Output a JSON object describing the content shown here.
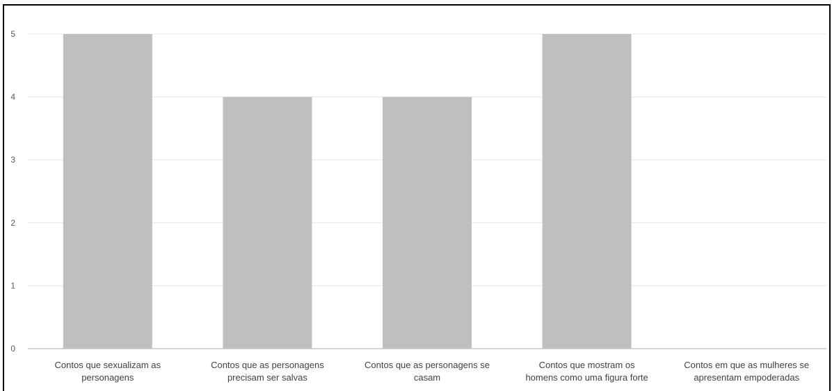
{
  "chart_data": {
    "type": "bar",
    "categories": [
      [
        "Contos que sexualizam as",
        "personagens"
      ],
      [
        "Contos que as personagens",
        "precisam ser salvas"
      ],
      [
        "Contos que as personagens se",
        "casam"
      ],
      [
        "Contos que mostram os",
        "homens como uma figura forte"
      ],
      [
        "Contos em que as mulheres se",
        "apresentam empoderadas"
      ]
    ],
    "values": [
      5,
      4,
      4,
      5,
      0
    ],
    "yticks": [
      "0",
      "1",
      "2",
      "3",
      "4",
      "5"
    ],
    "ylim": [
      0,
      5
    ],
    "grid": true,
    "bar_color": "#bfbfbf",
    "grid_color": "#e6e6e6",
    "axis_color": "#bfbfbf"
  }
}
